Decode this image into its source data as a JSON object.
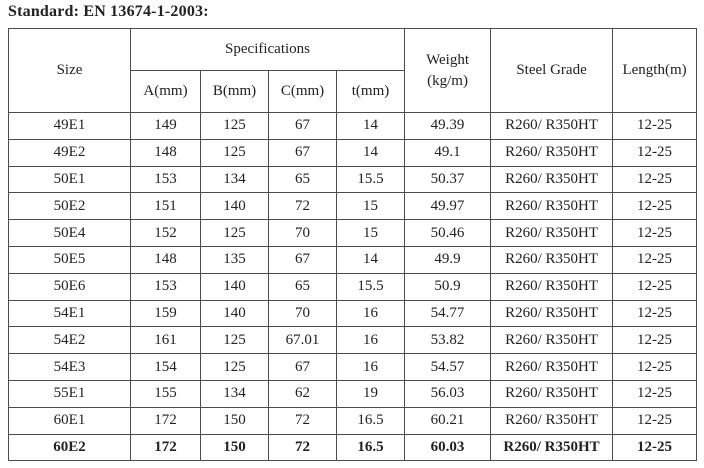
{
  "title": "Standard: EN 13674-1-2003:",
  "table": {
    "headers": {
      "size": "Size",
      "specifications": "Specifications",
      "weight_line1": "Weight",
      "weight_line2": "(kg/m)",
      "steel_grade": "Steel Grade",
      "length": "Length(m)"
    },
    "spec_columns": [
      "A(mm)",
      "B(mm)",
      "C(mm)",
      "t(mm)"
    ],
    "rows": [
      {
        "size": "49E1",
        "a": "149",
        "b": "125",
        "c": "67",
        "t": "14",
        "weight": "49.39",
        "steel_grade": "R260/ R350HT",
        "length": "12-25"
      },
      {
        "size": "49E2",
        "a": "148",
        "b": "125",
        "c": "67",
        "t": "14",
        "weight": "49.1",
        "steel_grade": "R260/ R350HT",
        "length": "12-25"
      },
      {
        "size": "50E1",
        "a": "153",
        "b": "134",
        "c": "65",
        "t": "15.5",
        "weight": "50.37",
        "steel_grade": "R260/ R350HT",
        "length": "12-25"
      },
      {
        "size": "50E2",
        "a": "151",
        "b": "140",
        "c": "72",
        "t": "15",
        "weight": "49.97",
        "steel_grade": "R260/ R350HT",
        "length": "12-25"
      },
      {
        "size": "50E4",
        "a": "152",
        "b": "125",
        "c": "70",
        "t": "15",
        "weight": "50.46",
        "steel_grade": "R260/ R350HT",
        "length": "12-25"
      },
      {
        "size": "50E5",
        "a": "148",
        "b": "135",
        "c": "67",
        "t": "14",
        "weight": "49.9",
        "steel_grade": "R260/ R350HT",
        "length": "12-25"
      },
      {
        "size": "50E6",
        "a": "153",
        "b": "140",
        "c": "65",
        "t": "15.5",
        "weight": "50.9",
        "steel_grade": "R260/ R350HT",
        "length": "12-25"
      },
      {
        "size": "54E1",
        "a": "159",
        "b": "140",
        "c": "70",
        "t": "16",
        "weight": "54.77",
        "steel_grade": "R260/ R350HT",
        "length": "12-25"
      },
      {
        "size": "54E2",
        "a": "161",
        "b": "125",
        "c": "67.01",
        "t": "16",
        "weight": "53.82",
        "steel_grade": "R260/ R350HT",
        "length": "12-25"
      },
      {
        "size": "54E3",
        "a": "154",
        "b": "125",
        "c": "67",
        "t": "16",
        "weight": "54.57",
        "steel_grade": "R260/ R350HT",
        "length": "12-25"
      },
      {
        "size": "55E1",
        "a": "155",
        "b": "134",
        "c": "62",
        "t": "19",
        "weight": "56.03",
        "steel_grade": "R260/ R350HT",
        "length": "12-25"
      },
      {
        "size": "60E1",
        "a": "172",
        "b": "150",
        "c": "72",
        "t": "16.5",
        "weight": "60.21",
        "steel_grade": "R260/ R350HT",
        "length": "12-25"
      },
      {
        "size": "60E2",
        "a": "172",
        "b": "150",
        "c": "72",
        "t": "16.5",
        "weight": "60.03",
        "steel_grade": "R260/ R350HT",
        "length": "12-25"
      }
    ]
  }
}
